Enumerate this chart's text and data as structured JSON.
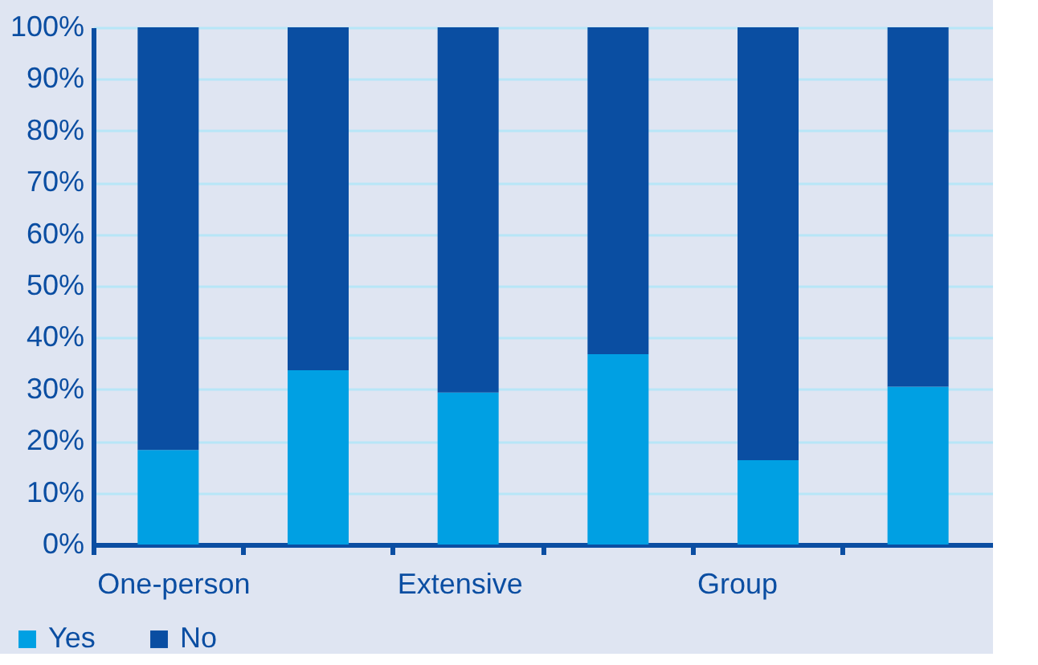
{
  "chart_data": {
    "type": "bar",
    "stacked": true,
    "categories": [
      "One-person",
      null,
      "Extensive",
      null,
      "Group",
      null
    ],
    "series": [
      {
        "name": "Yes",
        "color": "#00a0e3",
        "values": [
          18.3,
          33.7,
          29.4,
          36.8,
          16.3,
          30.5
        ]
      },
      {
        "name": "No",
        "color": "#0a4ea2",
        "values": [
          81.7,
          66.3,
          70.6,
          63.2,
          83.7,
          69.5
        ]
      }
    ],
    "ylim": [
      0,
      100
    ],
    "yticks": [
      {
        "value": 0,
        "label": "0%"
      },
      {
        "value": 10,
        "label": "10%"
      },
      {
        "value": 20,
        "label": "20%"
      },
      {
        "value": 30,
        "label": "30%"
      },
      {
        "value": 40,
        "label": "40%"
      },
      {
        "value": 50,
        "label": "50%"
      },
      {
        "value": 60,
        "label": "60%"
      },
      {
        "value": 70,
        "label": "70%"
      },
      {
        "value": 80,
        "label": "80%"
      },
      {
        "value": 90,
        "label": "90%"
      },
      {
        "value": 100,
        "label": "100%"
      }
    ],
    "grid": "y",
    "legend": "bottom left"
  }
}
